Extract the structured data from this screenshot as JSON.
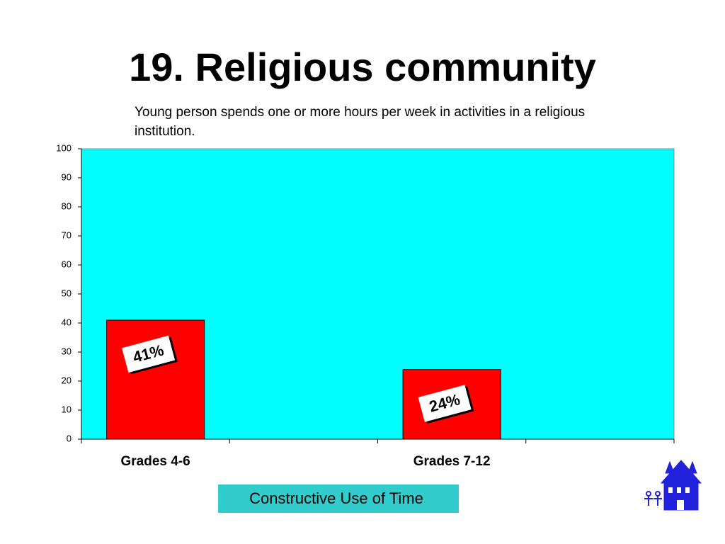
{
  "chart_data": {
    "type": "bar",
    "title": "19. Religious community",
    "subtitle": "Young person spends one or more hours per week in activities in a religious institution.",
    "categories": [
      "Grades 4-6",
      null,
      "Grades 7-12",
      null
    ],
    "values": [
      41,
      null,
      24,
      null
    ],
    "value_labels": [
      "41%",
      null,
      "24%",
      null
    ],
    "color": "#ff0000",
    "plot_background": "#00ffff",
    "ylim": [
      0,
      100
    ],
    "yticks": [
      0,
      10,
      20,
      30,
      40,
      50,
      60,
      70,
      80,
      90,
      100
    ],
    "grid": false,
    "badge": "Constructive Use of Time"
  }
}
